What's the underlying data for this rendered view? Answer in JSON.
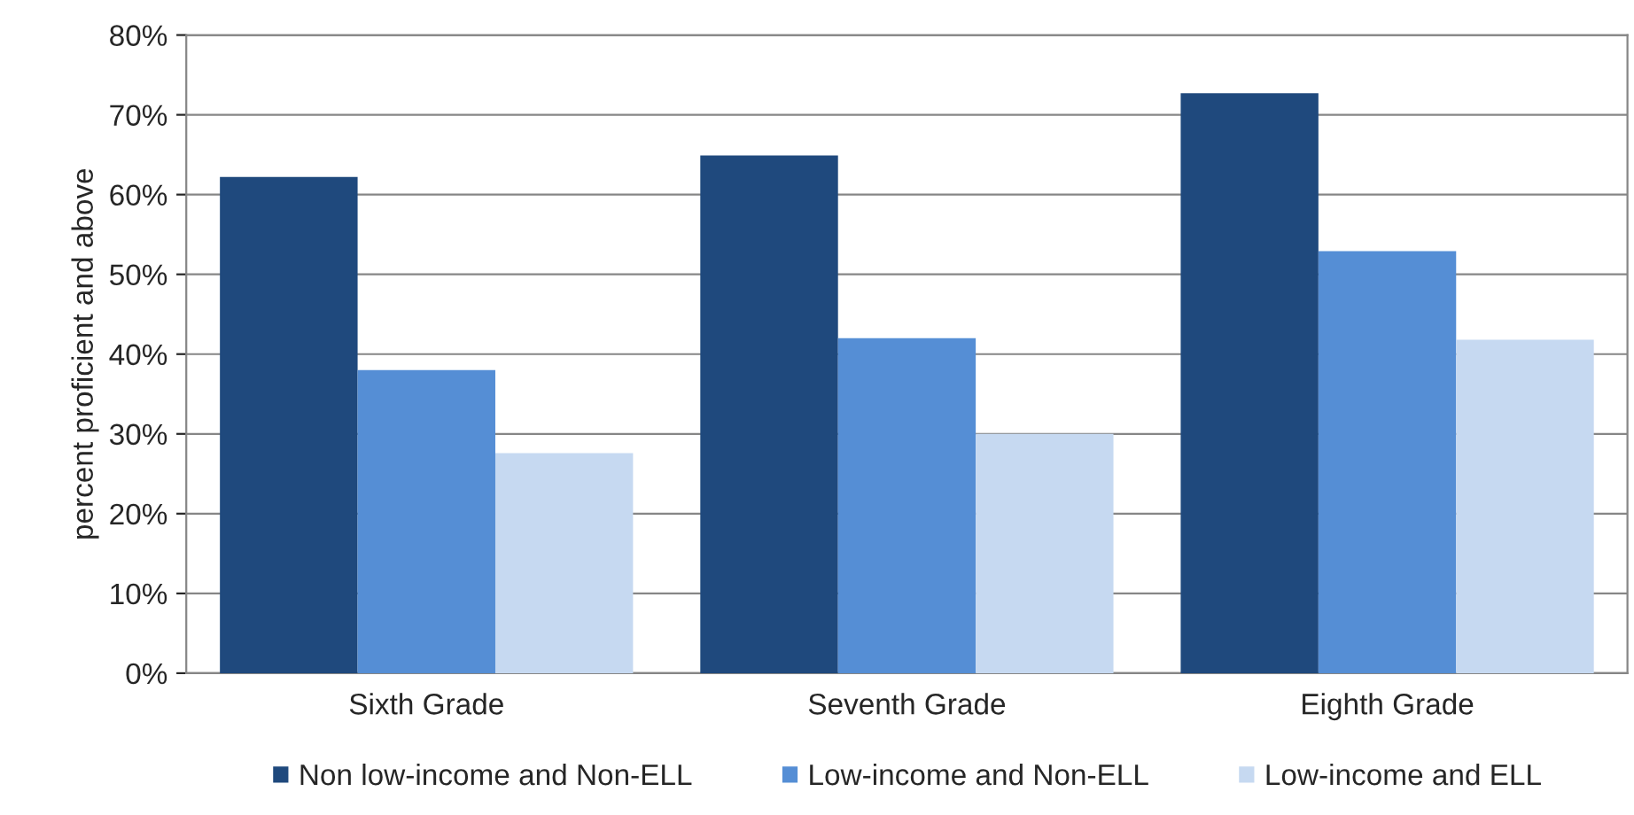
{
  "chart_data": {
    "type": "bar",
    "ylabel": "percent proficient and above",
    "categories": [
      "Sixth Grade",
      "Seventh Grade",
      "Eighth Grade"
    ],
    "series": [
      {
        "name": "Non low-income and Non-ELL",
        "color": "#1f497d",
        "values": [
          62.2,
          64.9,
          72.7
        ]
      },
      {
        "name": "Low-income and Non-ELL",
        "color": "#558ed5",
        "values": [
          38.0,
          42.0,
          52.9
        ]
      },
      {
        "name": "Low-income and ELL",
        "color": "#c6d9f1",
        "values": [
          27.6,
          30.0,
          41.8
        ]
      }
    ],
    "ylim": [
      0,
      80
    ],
    "yticks": [
      {
        "value": 0,
        "label": "0%"
      },
      {
        "value": 10,
        "label": "10%"
      },
      {
        "value": 20,
        "label": "20%"
      },
      {
        "value": 30,
        "label": "30%"
      },
      {
        "value": 40,
        "label": "40%"
      },
      {
        "value": 50,
        "label": "50%"
      },
      {
        "value": 60,
        "label": "60%"
      },
      {
        "value": 70,
        "label": "70%"
      },
      {
        "value": 80,
        "label": "80%"
      }
    ],
    "grid": "y",
    "legend": "bottom"
  }
}
